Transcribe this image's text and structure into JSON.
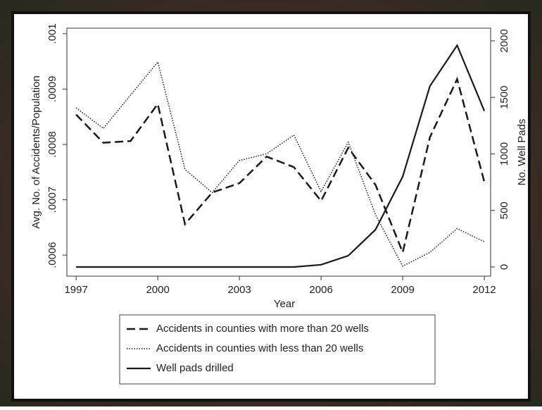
{
  "chart_data": {
    "type": "line",
    "x_label": "Year",
    "y_label": "Avg. No. of Accidents/Population",
    "y2_label": "No. Well Pads",
    "x": [
      1997,
      1998,
      1999,
      2000,
      2001,
      2002,
      2003,
      2004,
      2005,
      2006,
      2007,
      2008,
      2009,
      2010,
      2011,
      2012
    ],
    "xlim": [
      1996.66,
      2012.23
    ],
    "xticks": [
      1997,
      2000,
      2003,
      2006,
      2009,
      2012
    ],
    "ylim": [
      0.000562,
      0.00101
    ],
    "yticks": [
      {
        "value": 0.0006,
        "label": ".0006"
      },
      {
        "value": 0.0007,
        "label": ".0007"
      },
      {
        "value": 0.0008,
        "label": ".0008"
      },
      {
        "value": 0.0009,
        "label": ".0009"
      },
      {
        "value": 0.001,
        "label": ".001"
      }
    ],
    "y2lim": [
      -81,
      2112
    ],
    "y2ticks": [
      0,
      500,
      1000,
      1500,
      2000
    ],
    "series": [
      {
        "name": "Accidents in counties with more than 20 wells",
        "color": "#1a1a1a",
        "style": "dashed",
        "values": [
          0.000854,
          0.000803,
          0.000806,
          0.000873,
          0.000656,
          0.000713,
          0.00073,
          0.000778,
          0.000759,
          0.000698,
          0.000794,
          0.000727,
          0.000605,
          0.000813,
          0.000918,
          0.000732
        ]
      },
      {
        "name": "Accidents in counties with less than 20 wells",
        "color": "#1a1a1a",
        "style": "dotted",
        "values": [
          0.000866,
          0.000829,
          0.000889,
          0.000949,
          0.000755,
          0.000713,
          0.000771,
          0.000783,
          0.000817,
          0.000715,
          0.000804,
          0.000673,
          0.00058,
          0.000605,
          0.000648,
          0.000624
        ]
      },
      {
        "name": "Well pads drilled",
        "color": "#1a1a1a",
        "style": "solid",
        "axis": "y2",
        "values": [
          0,
          0,
          0,
          0,
          0,
          0,
          0,
          0,
          0,
          20,
          100,
          330,
          800,
          1600,
          1960,
          1380
        ]
      }
    ]
  }
}
